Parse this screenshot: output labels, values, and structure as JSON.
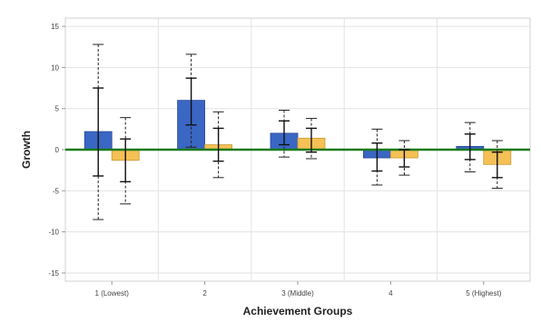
{
  "chart_data": {
    "type": "bar",
    "title": "",
    "xlabel": "Achievement Groups",
    "ylabel": "Growth",
    "ylim": [
      -16,
      16
    ],
    "yticks": [
      -15,
      -10,
      -5,
      0,
      5,
      10,
      15
    ],
    "grid": true,
    "legend": "none",
    "categories": [
      "1 (Lowest)",
      "2",
      "3 (Middle)",
      "4",
      "5 (Highest)"
    ],
    "baseline": 0,
    "colors": {
      "series1": "#3a66c4",
      "series2": "#f5c055",
      "baseline": "#1b7a1b"
    },
    "series": [
      {
        "values": [
          2.2,
          6.0,
          2.0,
          -1.0,
          0.4
        ],
        "inner_interval": [
          [
            -3.2,
            7.5
          ],
          [
            3.0,
            8.7
          ],
          [
            0.6,
            3.5
          ],
          [
            -2.6,
            0.8
          ],
          [
            -1.2,
            1.9
          ]
        ],
        "outer_interval": [
          [
            -8.5,
            12.8
          ],
          [
            0.3,
            11.6
          ],
          [
            -0.9,
            4.8
          ],
          [
            -4.3,
            2.5
          ],
          [
            -2.7,
            3.3
          ]
        ]
      },
      {
        "values": [
          -1.3,
          0.6,
          1.4,
          -1.0,
          -1.8
        ],
        "inner_interval": [
          [
            -3.9,
            1.3
          ],
          [
            -1.4,
            2.6
          ],
          [
            -0.3,
            2.6
          ],
          [
            -2.1,
            0.0
          ],
          [
            -3.4,
            -0.3
          ]
        ],
        "outer_interval": [
          [
            -6.6,
            3.9
          ],
          [
            -3.4,
            4.6
          ],
          [
            -1.1,
            3.8
          ],
          [
            -3.1,
            1.1
          ],
          [
            -4.7,
            1.1
          ]
        ]
      }
    ]
  }
}
